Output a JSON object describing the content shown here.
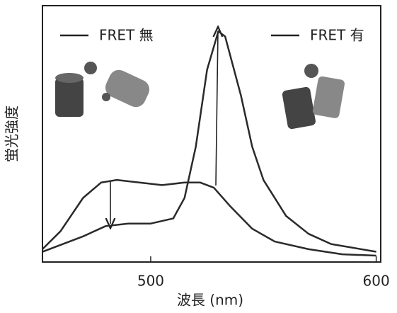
{
  "chart_data": {
    "type": "line",
    "x_label": "波長 (nm)",
    "y_label": "蛍光強度",
    "xlim": [
      452,
      602
    ],
    "ylim": [
      0,
      1
    ],
    "xticks": [
      500,
      600
    ],
    "series": [
      {
        "name": "FRET 無",
        "color": "#2a2a2a",
        "x": [
          452,
          460,
          470,
          478,
          485,
          495,
          505,
          515,
          522,
          528,
          535,
          545,
          555,
          570,
          585,
          600
        ],
        "values": [
          0.05,
          0.12,
          0.25,
          0.31,
          0.32,
          0.31,
          0.3,
          0.31,
          0.31,
          0.29,
          0.22,
          0.13,
          0.08,
          0.05,
          0.03,
          0.025
        ]
      },
      {
        "name": "FRET 有",
        "color": "#2a2a2a",
        "x": [
          452,
          470,
          480,
          490,
          500,
          510,
          515,
          520,
          525,
          530,
          533,
          540,
          545,
          550,
          560,
          570,
          580,
          600
        ],
        "values": [
          0.04,
          0.1,
          0.14,
          0.15,
          0.15,
          0.17,
          0.25,
          0.45,
          0.75,
          0.9,
          0.88,
          0.65,
          0.45,
          0.32,
          0.18,
          0.11,
          0.07,
          0.04
        ]
      }
    ]
  }
}
